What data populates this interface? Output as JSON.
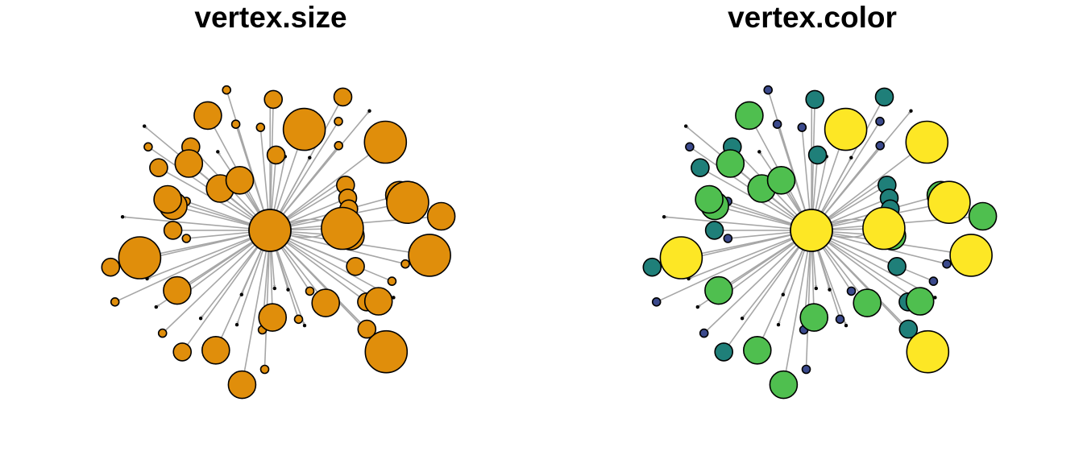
{
  "panels": [
    {
      "title": "vertex.size",
      "color_mode": "single"
    },
    {
      "title": "vertex.color",
      "color_mode": "by_size"
    }
  ],
  "colors": {
    "single_fill": "#E08E0B",
    "edge": "#A6A6A6",
    "vertex_border": "#000000",
    "size_bins": [
      "#000000",
      "#3B4A8C",
      "#1F7F79",
      "#4FBF4F",
      "#FDE725"
    ]
  },
  "graph": {
    "type": "star",
    "center_size": 6,
    "leaf_sizes": [
      4,
      5,
      2,
      2,
      3,
      1,
      4,
      3,
      5,
      3,
      4,
      2,
      1,
      2,
      1,
      1,
      2,
      4,
      2,
      4,
      1,
      1,
      4,
      3,
      1,
      2,
      2,
      4,
      1,
      2,
      1,
      5,
      3,
      2,
      3,
      1,
      4,
      2,
      4,
      3,
      2,
      1,
      4,
      4,
      3,
      4,
      1,
      4,
      2,
      2,
      2,
      3,
      2,
      3,
      1,
      5,
      3,
      1,
      2,
      2,
      1,
      5,
      1,
      3,
      3,
      3,
      4,
      5,
      5,
      4
    ]
  },
  "chart_data": {
    "type": "network",
    "layout": "star",
    "vertex_count": 71,
    "edge_count": 70,
    "center_size_bin": 6,
    "leaf_size_bins": [
      4,
      5,
      2,
      2,
      3,
      1,
      4,
      3,
      5,
      3,
      4,
      2,
      1,
      2,
      1,
      1,
      2,
      4,
      2,
      4,
      1,
      1,
      4,
      3,
      1,
      2,
      2,
      4,
      1,
      2,
      1,
      5,
      3,
      2,
      3,
      1,
      4,
      2,
      4,
      3,
      2,
      1,
      4,
      4,
      3,
      4,
      1,
      4,
      2,
      2,
      2,
      3,
      2,
      3,
      1,
      5,
      3,
      1,
      2,
      2,
      1,
      5,
      1,
      3,
      3,
      3,
      4,
      5,
      5,
      4
    ]
  }
}
